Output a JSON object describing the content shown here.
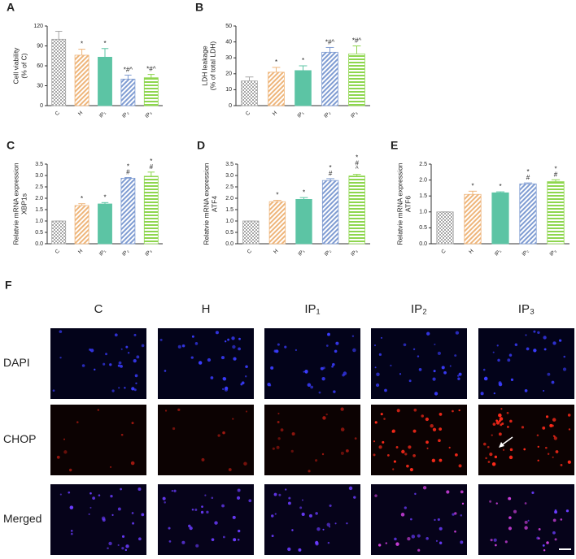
{
  "chart_data": [
    {
      "type": "bar",
      "panel": "A",
      "ylabel": [
        "Cell viability",
        "(% of C)"
      ],
      "categories": [
        "C",
        "H",
        "IP₁",
        "IP₂",
        "IP₃"
      ],
      "values": [
        100,
        76,
        73,
        40,
        42
      ],
      "errors": [
        12,
        9,
        13,
        6,
        5
      ],
      "annotations": [
        null,
        [
          "*"
        ],
        [
          "*"
        ],
        [
          "*#^"
        ],
        [
          "*#^"
        ]
      ],
      "colors": [
        "#a6a6a6",
        "#eeb57a",
        "#5cc4a4",
        "#7f9cd2",
        "#8ed64e"
      ],
      "patterns": [
        "checker",
        "diagonal",
        "solid",
        "diagonal",
        "horizontal"
      ],
      "ylim": [
        0,
        120
      ],
      "yticks": [
        0,
        30,
        60,
        90,
        120
      ]
    },
    {
      "type": "bar",
      "panel": "B",
      "ylabel": [
        "LDH leakage",
        "(% of total LDH)"
      ],
      "categories": [
        "C",
        "H",
        "IP₁",
        "IP₂",
        "IP₃"
      ],
      "values": [
        15.5,
        21,
        22,
        33.5,
        32.5
      ],
      "errors": [
        2.5,
        3,
        3,
        3,
        5
      ],
      "annotations": [
        null,
        [
          "*"
        ],
        [
          "*"
        ],
        [
          "*#^"
        ],
        [
          "*#^"
        ]
      ],
      "colors": [
        "#a6a6a6",
        "#eeb57a",
        "#5cc4a4",
        "#7f9cd2",
        "#8ed64e"
      ],
      "patterns": [
        "checker",
        "diagonal",
        "solid",
        "diagonal",
        "horizontal"
      ],
      "ylim": [
        0,
        50
      ],
      "yticks": [
        0,
        10,
        20,
        30,
        40,
        50
      ]
    },
    {
      "type": "bar",
      "panel": "C",
      "ylabel": [
        "Relatvie mRNA expression",
        "XBP1s"
      ],
      "categories": [
        "C",
        "H",
        "IP₁",
        "IP₂",
        "IP₃"
      ],
      "values": [
        1.0,
        1.68,
        1.75,
        2.88,
        2.97
      ],
      "errors": [
        0,
        0.08,
        0.06,
        0.03,
        0.18
      ],
      "annotations": [
        null,
        [
          "*"
        ],
        [
          "*"
        ],
        [
          "*",
          "#"
        ],
        [
          "*",
          "#"
        ]
      ],
      "colors": [
        "#a6a6a6",
        "#eeb57a",
        "#5cc4a4",
        "#7f9cd2",
        "#8ed64e"
      ],
      "patterns": [
        "checker",
        "diagonal",
        "solid",
        "diagonal",
        "horizontal"
      ],
      "ylim": [
        0,
        3.5
      ],
      "yticks": [
        {
          "value": 0,
          "label": "0.0"
        },
        0.5,
        {
          "value": 1,
          "label": "1.0"
        },
        1.5,
        {
          "value": 2,
          "label": "2.0"
        },
        2.5,
        {
          "value": 3,
          "label": "3.0"
        },
        3.5
      ]
    },
    {
      "type": "bar",
      "panel": "D",
      "ylabel": [
        "Relatvie mRNA expression",
        "ATF4"
      ],
      "categories": [
        "C",
        "H",
        "IP₁",
        "IP₂",
        "IP₃"
      ],
      "values": [
        1.0,
        1.85,
        1.95,
        2.78,
        2.98
      ],
      "errors": [
        0,
        0.06,
        0.08,
        0.08,
        0.07
      ],
      "annotations": [
        null,
        [
          "*"
        ],
        [
          "*"
        ],
        [
          "*",
          "#"
        ],
        [
          "*",
          "#",
          "^"
        ]
      ],
      "colors": [
        "#a6a6a6",
        "#eeb57a",
        "#5cc4a4",
        "#7f9cd2",
        "#8ed64e"
      ],
      "patterns": [
        "checker",
        "diagonal",
        "solid",
        "diagonal",
        "horizontal"
      ],
      "ylim": [
        0,
        3.5
      ],
      "yticks": [
        {
          "value": 0,
          "label": "0.0"
        },
        0.5,
        {
          "value": 1,
          "label": "1.0"
        },
        1.5,
        {
          "value": 2,
          "label": "2.0"
        },
        2.5,
        {
          "value": 3,
          "label": "3.0"
        },
        3.5
      ]
    },
    {
      "type": "bar",
      "panel": "E",
      "ylabel": [
        "Relatvie mRNA expression",
        "ATF6"
      ],
      "categories": [
        "C",
        "H",
        "IP₁",
        "IP₂",
        "IP₃"
      ],
      "values": [
        1.0,
        1.55,
        1.6,
        1.88,
        1.95
      ],
      "errors": [
        0,
        0.1,
        0.03,
        0.03,
        0.06
      ],
      "annotations": [
        null,
        [
          "*"
        ],
        [
          "*"
        ],
        [
          "*",
          "#"
        ],
        [
          "*",
          "#"
        ]
      ],
      "colors": [
        "#a6a6a6",
        "#eeb57a",
        "#5cc4a4",
        "#7f9cd2",
        "#8ed64e"
      ],
      "patterns": [
        "checker",
        "diagonal",
        "solid",
        "diagonal",
        "horizontal"
      ],
      "ylim": [
        0,
        2.5
      ],
      "yticks": [
        {
          "value": 0,
          "label": "0.0"
        },
        0.5,
        {
          "value": 1,
          "label": "1.0"
        },
        1.5,
        {
          "value": 2,
          "label": "2.0"
        },
        2.5
      ]
    }
  ],
  "panel_f": {
    "label": "F",
    "columns": [
      "C",
      "H",
      "IP₁",
      "IP₂",
      "IP₃"
    ],
    "rows": [
      "DAPI",
      "CHOP",
      "Merged"
    ]
  }
}
